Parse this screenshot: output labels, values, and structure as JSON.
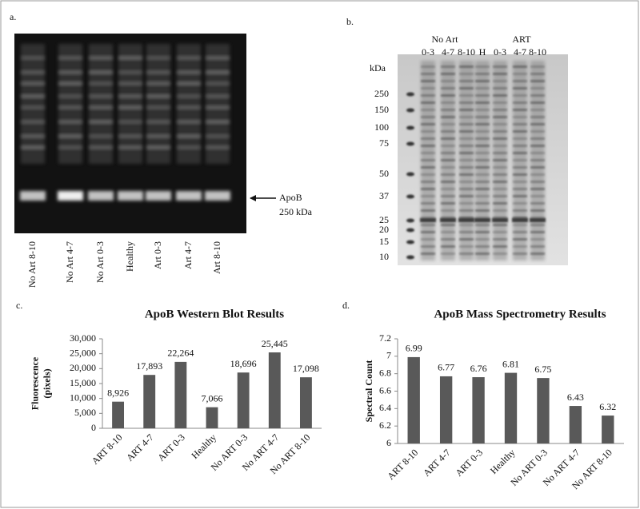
{
  "panels": {
    "a": {
      "label": "a.",
      "lanes": [
        "No Art 8-10",
        "No Art 4-7",
        "No Art 0-3",
        "Healthy",
        "Art 0-3",
        "Art 4-7",
        "Art 8-10"
      ],
      "annotation": [
        "ApoB",
        "250 kDa"
      ]
    },
    "b": {
      "label": "b.",
      "groups": [
        "No Art",
        "ART"
      ],
      "lanes": [
        "0-3",
        "4-7",
        "8-10",
        "H",
        "0-3",
        "4-7",
        "8-10"
      ],
      "unit": "kDa",
      "markers": [
        "250",
        "150",
        "100",
        "75",
        "50",
        "37",
        "25",
        "20",
        "15",
        "10"
      ]
    }
  },
  "chart_data": [
    {
      "type": "bar",
      "panel_label": "c.",
      "title": "ApoB Western Blot Results",
      "y_label": [
        "Fluorescence",
        "(pixels)"
      ],
      "categories": [
        "ART 8-10",
        "ART 4-7",
        "ART 0-3",
        "Healthy",
        "No ART 0-3",
        "No ART 4-7",
        "No ART 8-10"
      ],
      "values": [
        8926,
        17893,
        22264,
        7066,
        18696,
        25445,
        17098
      ],
      "value_labels": [
        "8,926",
        "17,893",
        "22,264",
        "7,066",
        "18,696",
        "25,445",
        "17,098"
      ],
      "color": "#595959",
      "grid": false,
      "ylim": [
        0,
        30000
      ],
      "yticks": [
        0,
        {
          "value": 5000,
          "label": "5,000"
        },
        {
          "value": 10000,
          "label": "10,000"
        },
        {
          "value": 15000,
          "label": "15,000"
        },
        {
          "value": 20000,
          "label": "20,000"
        },
        {
          "value": 25000,
          "label": "25,000"
        },
        {
          "value": 30000,
          "label": "30,000"
        }
      ]
    },
    {
      "type": "bar",
      "panel_label": "d.",
      "title": "ApoB Mass Spectrometry Results",
      "y_label": [
        "Spectral Count"
      ],
      "categories": [
        "ART 8-10",
        "ART 4-7",
        "ART 0-3",
        "Healthy",
        "No ART 0-3",
        "No ART 4-7",
        "No ART 8-10"
      ],
      "values": [
        6.99,
        6.77,
        6.76,
        6.81,
        6.75,
        6.43,
        6.32
      ],
      "color": "#595959",
      "grid": false,
      "ylim": [
        6,
        7.2
      ],
      "yticks": [
        6,
        6.2,
        6.4,
        6.6,
        6.8,
        7,
        7.2
      ]
    }
  ]
}
